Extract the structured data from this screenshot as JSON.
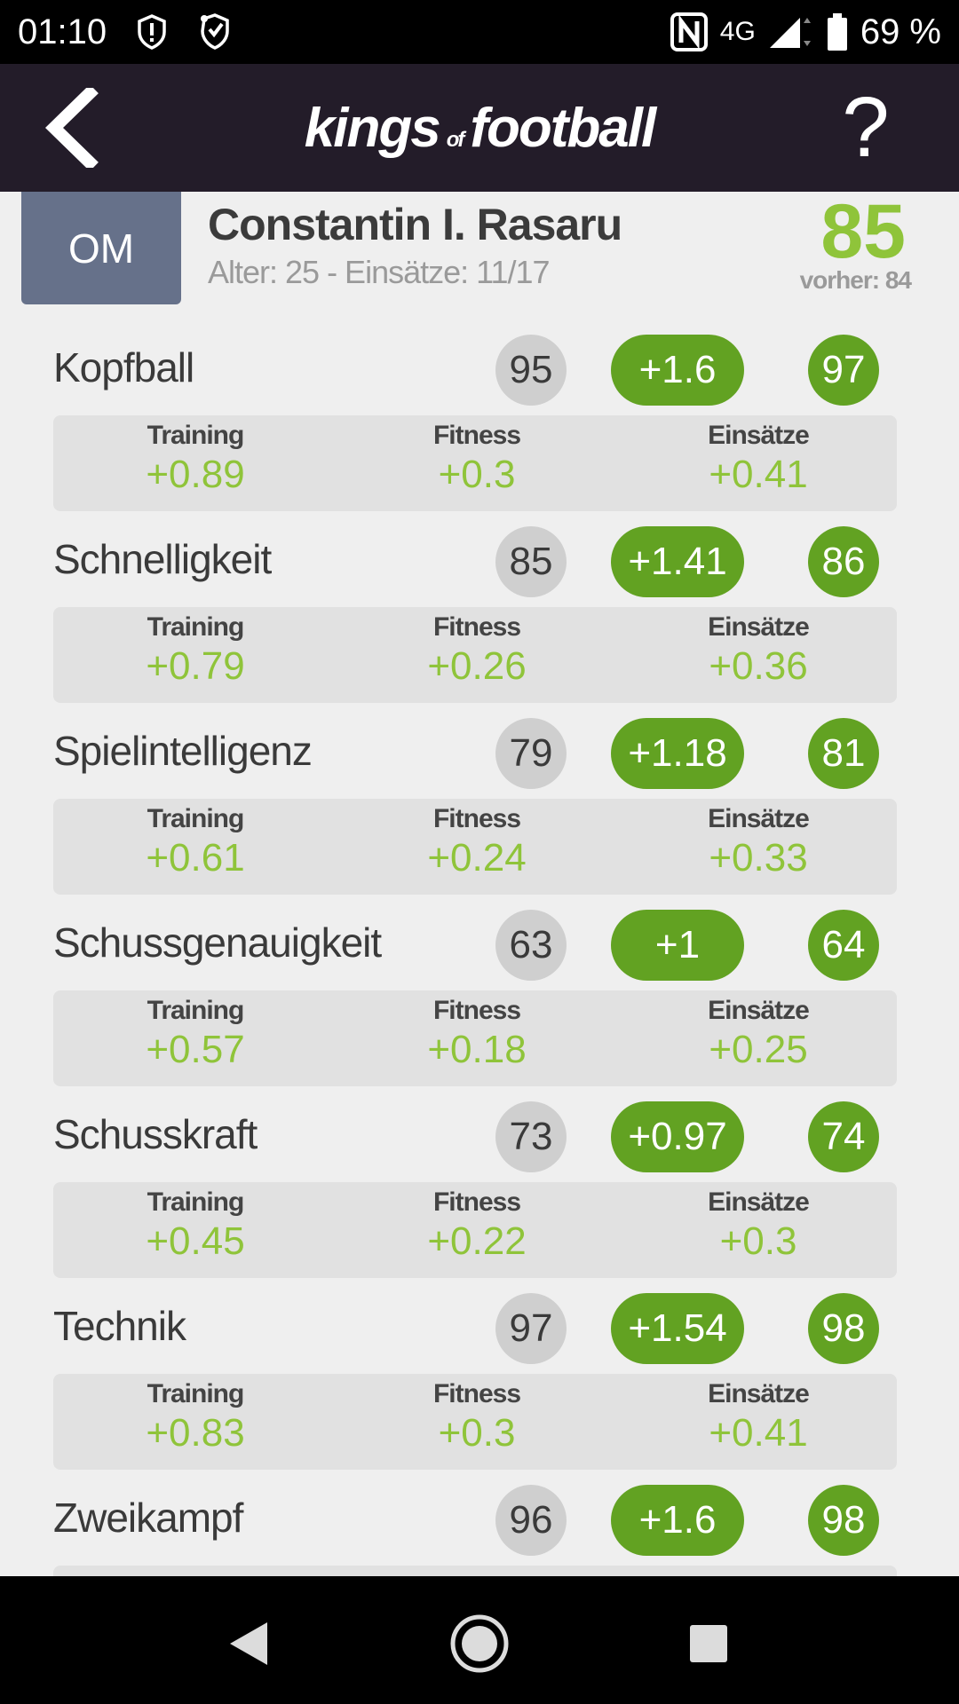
{
  "status": {
    "time": "01:10",
    "network": "4G",
    "battery": "69 %",
    "icons": [
      "shield-alert-icon",
      "security-shield-icon",
      "nfc-icon",
      "signal-icon",
      "battery-icon"
    ]
  },
  "header": {
    "logo_part1": "kings",
    "logo_part2": "of",
    "logo_part3": "football",
    "back_icon": "chevron-left-icon",
    "help_label": "?"
  },
  "player": {
    "position": "OM",
    "name": "Constantin I. Rasaru",
    "meta": "Alter: 25 - Einsätze: 11/17",
    "rating": "85",
    "previous": "vorher: 84"
  },
  "breakdown_labels": {
    "training": "Training",
    "fitness": "Fitness",
    "einsaetze": "Einsätze"
  },
  "attributes": [
    {
      "name": "Kopfball",
      "base": "95",
      "delta": "+1.6",
      "result": "97",
      "training": "+0.89",
      "fitness": "+0.3",
      "einsaetze": "+0.41"
    },
    {
      "name": "Schnelligkeit",
      "base": "85",
      "delta": "+1.41",
      "result": "86",
      "training": "+0.79",
      "fitness": "+0.26",
      "einsaetze": "+0.36"
    },
    {
      "name": "Spielintelligenz",
      "base": "79",
      "delta": "+1.18",
      "result": "81",
      "training": "+0.61",
      "fitness": "+0.24",
      "einsaetze": "+0.33"
    },
    {
      "name": "Schussgenauigkeit",
      "base": "63",
      "delta": "+1",
      "result": "64",
      "training": "+0.57",
      "fitness": "+0.18",
      "einsaetze": "+0.25"
    },
    {
      "name": "Schusskraft",
      "base": "73",
      "delta": "+0.97",
      "result": "74",
      "training": "+0.45",
      "fitness": "+0.22",
      "einsaetze": "+0.3"
    },
    {
      "name": "Technik",
      "base": "97",
      "delta": "+1.54",
      "result": "98",
      "training": "+0.83",
      "fitness": "+0.3",
      "einsaetze": "+0.41"
    },
    {
      "name": "Zweikampf",
      "base": "96",
      "delta": "+1.6",
      "result": "98"
    }
  ],
  "colors": {
    "header_bg": "#231c29",
    "accent_green": "#62a222",
    "light_green": "#8fc43a",
    "badge_blue": "#66718a"
  },
  "nav": {
    "icons": [
      "back-triangle-icon",
      "home-circle-icon",
      "recents-square-icon"
    ]
  }
}
